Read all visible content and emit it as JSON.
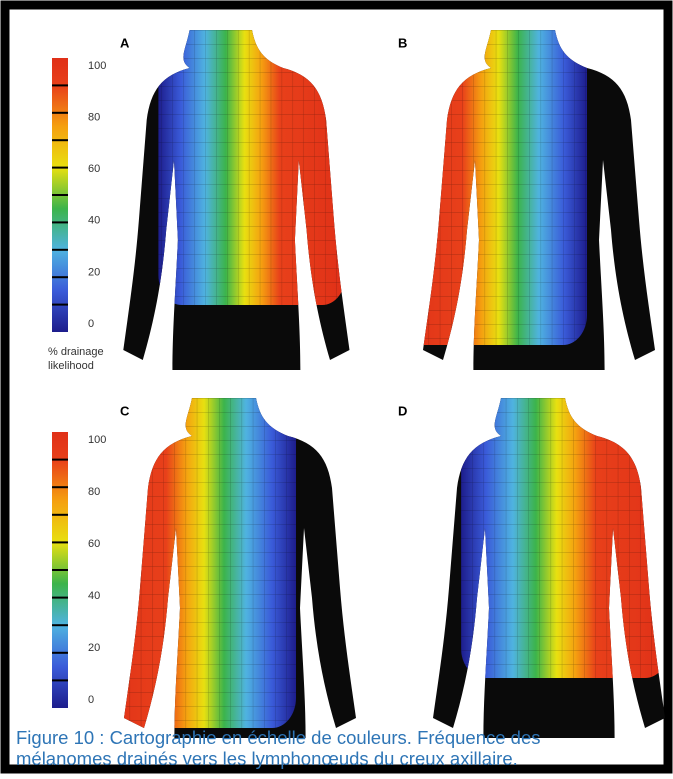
{
  "panels": [
    {
      "label": "A",
      "colorbar": {
        "ticks": [
          100,
          80,
          60,
          40,
          20,
          0
        ],
        "caption": [
          "% drainage",
          "likelihood"
        ]
      }
    },
    {
      "label": "B"
    },
    {
      "label": "C",
      "colorbar": {
        "ticks": [
          100,
          80,
          60,
          40,
          20,
          0
        ]
      }
    },
    {
      "label": "D"
    }
  ],
  "caption": [
    "Figure 10 : Cartographie en échelle de couleurs. Fréquence des",
    "mélanomes drainés vers les lymphonœuds du creux axillaire."
  ]
}
